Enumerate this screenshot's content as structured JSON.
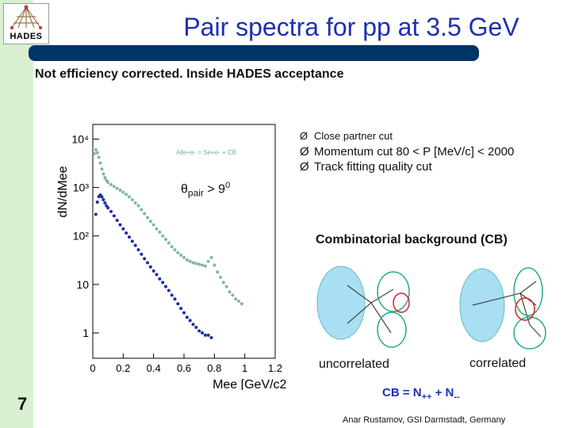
{
  "slide": {
    "title": "Pair spectra for pp at 3.5 GeV",
    "subtitle": "Not efficiency corrected.   Inside HADES acceptance",
    "logo_text": "HADES",
    "page_number": "7",
    "author": "Anar Rustamov, GSI Darmstadt, Germany"
  },
  "cuts": {
    "arrow": "Ø",
    "items": [
      "Close partner cut",
      "Momentum cut   80 < P [MeV/c] < 2000",
      "Track fitting quality cut"
    ]
  },
  "theta_cut": {
    "symbol": "θ",
    "sub": "pair",
    "rest": " > 9",
    "sup": "0"
  },
  "cb": {
    "title": "Combinatorial background (CB)",
    "label_uncorrelated": "uncorrelated",
    "label_correlated": "correlated",
    "formula_left": "CB = N",
    "formula_sub1": "++",
    "formula_mid": " + N",
    "formula_sub2": "--"
  },
  "colors": {
    "title": "#1d2fb5",
    "bar": "#003366",
    "sidebar": "#d9f0d0",
    "series_all": "#7fb8a0",
    "series_cb": "#1a2ca8"
  },
  "chart_data": {
    "type": "scatter",
    "title": "",
    "xlabel": "Mee [GeV/c2]",
    "ylabel": "dN/dMee",
    "ylog": true,
    "xlim": [
      0,
      1.2
    ],
    "ylim": [
      0.3,
      20000
    ],
    "x_ticks": [
      "0",
      "0.2",
      "0.4",
      "0.6",
      "0.8",
      "1",
      "1.2"
    ],
    "y_ticks": [
      "1",
      "10",
      "10²",
      "10³",
      "10⁴"
    ],
    "legend_text": "Alle+e- = Se+e- + CB",
    "series": [
      {
        "name": "All",
        "points": [
          [
            0.01,
            5000
          ],
          [
            0.02,
            6000
          ],
          [
            0.03,
            5200
          ],
          [
            0.04,
            4200
          ],
          [
            0.05,
            3200
          ],
          [
            0.06,
            2400
          ],
          [
            0.07,
            1900
          ],
          [
            0.08,
            1600
          ],
          [
            0.09,
            1400
          ],
          [
            0.1,
            1280
          ],
          [
            0.12,
            1150
          ],
          [
            0.14,
            1050
          ],
          [
            0.16,
            960
          ],
          [
            0.18,
            880
          ],
          [
            0.2,
            800
          ],
          [
            0.22,
            720
          ],
          [
            0.24,
            640
          ],
          [
            0.26,
            560
          ],
          [
            0.28,
            480
          ],
          [
            0.3,
            420
          ],
          [
            0.32,
            350
          ],
          [
            0.34,
            290
          ],
          [
            0.36,
            240
          ],
          [
            0.38,
            200
          ],
          [
            0.4,
            170
          ],
          [
            0.42,
            140
          ],
          [
            0.44,
            120
          ],
          [
            0.46,
            100
          ],
          [
            0.48,
            85
          ],
          [
            0.5,
            72
          ],
          [
            0.52,
            60
          ],
          [
            0.54,
            52
          ],
          [
            0.56,
            45
          ],
          [
            0.58,
            40
          ],
          [
            0.6,
            36
          ],
          [
            0.62,
            32
          ],
          [
            0.64,
            30
          ],
          [
            0.66,
            28
          ],
          [
            0.68,
            27
          ],
          [
            0.7,
            26
          ],
          [
            0.72,
            25
          ],
          [
            0.74,
            24
          ],
          [
            0.76,
            30
          ],
          [
            0.78,
            36
          ],
          [
            0.8,
            25
          ],
          [
            0.82,
            18
          ],
          [
            0.84,
            14
          ],
          [
            0.86,
            11
          ],
          [
            0.88,
            9
          ],
          [
            0.9,
            7
          ],
          [
            0.92,
            6
          ],
          [
            0.94,
            5
          ],
          [
            0.96,
            4.5
          ],
          [
            0.98,
            4
          ]
        ]
      },
      {
        "name": "CB",
        "points": [
          [
            0.02,
            280
          ],
          [
            0.03,
            500
          ],
          [
            0.04,
            650
          ],
          [
            0.05,
            700
          ],
          [
            0.06,
            640
          ],
          [
            0.07,
            560
          ],
          [
            0.08,
            480
          ],
          [
            0.09,
            420
          ],
          [
            0.1,
            380
          ],
          [
            0.12,
            320
          ],
          [
            0.14,
            260
          ],
          [
            0.16,
            210
          ],
          [
            0.18,
            170
          ],
          [
            0.2,
            140
          ],
          [
            0.22,
            115
          ],
          [
            0.24,
            95
          ],
          [
            0.26,
            78
          ],
          [
            0.28,
            64
          ],
          [
            0.3,
            52
          ],
          [
            0.32,
            42
          ],
          [
            0.34,
            34
          ],
          [
            0.36,
            28
          ],
          [
            0.38,
            23
          ],
          [
            0.4,
            19
          ],
          [
            0.42,
            16
          ],
          [
            0.44,
            13
          ],
          [
            0.46,
            11
          ],
          [
            0.48,
            9
          ],
          [
            0.5,
            7.5
          ],
          [
            0.52,
            6
          ],
          [
            0.54,
            5
          ],
          [
            0.56,
            4
          ],
          [
            0.58,
            3.2
          ],
          [
            0.6,
            2.6
          ],
          [
            0.62,
            2.1
          ],
          [
            0.64,
            1.8
          ],
          [
            0.66,
            1.5
          ],
          [
            0.68,
            1.3
          ],
          [
            0.7,
            1.1
          ],
          [
            0.72,
            1
          ],
          [
            0.74,
            0.9
          ],
          [
            0.76,
            0.9
          ],
          [
            0.78,
            0.8
          ]
        ]
      }
    ]
  }
}
